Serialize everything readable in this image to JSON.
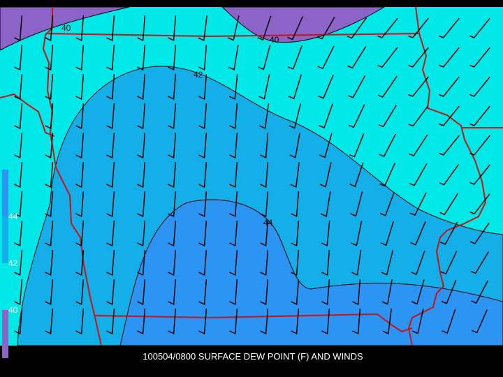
{
  "contour_labels": [
    "40",
    "40",
    "42",
    "44"
  ],
  "legend": {
    "labels": [
      "44",
      "42",
      "40"
    ]
  },
  "caption": "100504/0800 SURFACE DEW POINT (F) AND WINDS"
}
